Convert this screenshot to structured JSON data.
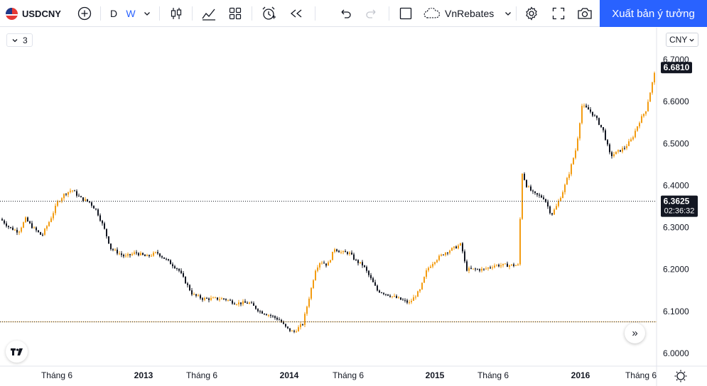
{
  "toolbar": {
    "symbol": "USDCNY",
    "interval_d": "D",
    "interval_w": "W",
    "account": "VnRebates",
    "publish_label": "Xuất bản ý tưởng"
  },
  "legend": {
    "count": "3"
  },
  "price_scale": {
    "currency": "CNY",
    "last_price": "6.6810",
    "crosshair_price": "6.3625",
    "countdown": "02:36:32"
  },
  "colors": {
    "up": "#f39c12",
    "down": "#131722",
    "accent": "#2962ff"
  },
  "chart_data": {
    "type": "candlestick",
    "yticks": [
      "6.7000",
      "6.6000",
      "6.5000",
      "6.4000",
      "6.3000",
      "6.2000",
      "6.1000",
      "6.0000"
    ],
    "xticks": [
      "Tháng 6",
      "2013",
      "Tháng 6",
      "2014",
      "Tháng 6",
      "2015",
      "Tháng 6",
      "2016",
      "Tháng 6"
    ],
    "ylim": [
      6.0,
      6.7
    ],
    "crosshair_price": 6.3625,
    "horizontal_line": 6.075,
    "path": [
      [
        0,
        6.32
      ],
      [
        12,
        6.3
      ],
      [
        25,
        6.29
      ],
      [
        35,
        6.32
      ],
      [
        45,
        6.3
      ],
      [
        58,
        6.28
      ],
      [
        70,
        6.32
      ],
      [
        80,
        6.36
      ],
      [
        90,
        6.38
      ],
      [
        100,
        6.39
      ],
      [
        112,
        6.37
      ],
      [
        125,
        6.36
      ],
      [
        135,
        6.34
      ],
      [
        145,
        6.3
      ],
      [
        155,
        6.25
      ],
      [
        165,
        6.24
      ],
      [
        175,
        6.23
      ],
      [
        190,
        6.24
      ],
      [
        205,
        6.23
      ],
      [
        220,
        6.24
      ],
      [
        235,
        6.22
      ],
      [
        250,
        6.2
      ],
      [
        260,
        6.17
      ],
      [
        270,
        6.14
      ],
      [
        285,
        6.13
      ],
      [
        300,
        6.13
      ],
      [
        315,
        6.13
      ],
      [
        330,
        6.12
      ],
      [
        350,
        6.12
      ],
      [
        365,
        6.1
      ],
      [
        380,
        6.09
      ],
      [
        392,
        6.08
      ],
      [
        402,
        6.06
      ],
      [
        412,
        6.05
      ],
      [
        425,
        6.07
      ],
      [
        435,
        6.14
      ],
      [
        443,
        6.2
      ],
      [
        450,
        6.22
      ],
      [
        460,
        6.21
      ],
      [
        470,
        6.25
      ],
      [
        480,
        6.24
      ],
      [
        490,
        6.24
      ],
      [
        500,
        6.22
      ],
      [
        510,
        6.21
      ],
      [
        520,
        6.18
      ],
      [
        530,
        6.15
      ],
      [
        545,
        6.14
      ],
      [
        560,
        6.13
      ],
      [
        575,
        6.12
      ],
      [
        590,
        6.15
      ],
      [
        600,
        6.2
      ],
      [
        610,
        6.22
      ],
      [
        625,
        6.24
      ],
      [
        637,
        6.25
      ],
      [
        648,
        6.26
      ],
      [
        655,
        6.2
      ],
      [
        665,
        6.2
      ],
      [
        680,
        6.2
      ],
      [
        695,
        6.21
      ],
      [
        710,
        6.21
      ],
      [
        728,
        6.21
      ],
      [
        734,
        6.43
      ],
      [
        740,
        6.4
      ],
      [
        750,
        6.38
      ],
      [
        765,
        6.37
      ],
      [
        775,
        6.33
      ],
      [
        782,
        6.35
      ],
      [
        792,
        6.39
      ],
      [
        800,
        6.43
      ],
      [
        810,
        6.49
      ],
      [
        818,
        6.59
      ],
      [
        828,
        6.58
      ],
      [
        838,
        6.56
      ],
      [
        848,
        6.53
      ],
      [
        858,
        6.47
      ],
      [
        868,
        6.48
      ],
      [
        878,
        6.49
      ],
      [
        888,
        6.51
      ],
      [
        898,
        6.55
      ],
      [
        908,
        6.58
      ],
      [
        915,
        6.63
      ],
      [
        922,
        6.68
      ]
    ]
  }
}
